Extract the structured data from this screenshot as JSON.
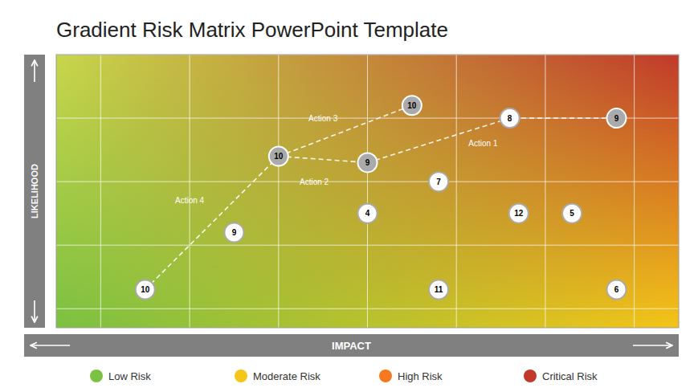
{
  "chart_data": {
    "type": "scatter",
    "title": "Gradient Risk Matrix PowerPoint Template",
    "x_label": "IMPACT",
    "y_label": "LIKELIHOOD",
    "xlim": [
      0.5,
      7.5
    ],
    "ylim": [
      0.7,
      5.0
    ],
    "xticks": [
      1,
      2,
      3,
      4,
      5,
      6,
      7
    ],
    "yticks": [
      1,
      2,
      3,
      4,
      5
    ],
    "grid": true,
    "tick_labels": false,
    "gradient": {
      "bottom_left": "#7bc142",
      "bottom_right": "#f5c518",
      "top_left": "#c8d64b",
      "top_right": "#c0392b"
    },
    "points": {
      "x": [
        1.5,
        2.5,
        3.0,
        4.0,
        4.0,
        4.8,
        4.8,
        5.7,
        6.3,
        5.6,
        4.5,
        6.8,
        6.8
      ],
      "values": [
        1.3,
        2.2,
        3.4,
        3.3,
        2.5,
        3.0,
        1.3,
        2.5,
        2.5,
        4.0,
        4.2,
        4.0,
        1.3
      ],
      "labels": [
        "10",
        "9",
        "10",
        "9",
        "4",
        "7",
        "11",
        "12",
        "5",
        "8",
        "10",
        "9",
        "6"
      ],
      "colors": [
        "#ffffff",
        "#ffffff",
        "#aaaaaa",
        "#aaaaaa",
        "#ffffff",
        "#ffffff",
        "#ffffff",
        "#ffffff",
        "#ffffff",
        "#ffffff",
        "#aaaaaa",
        "#aaaaaa",
        "#ffffff"
      ]
    },
    "annotations": [
      {
        "text": "Action 1",
        "x": 5.3,
        "y": 3.6,
        "line_x": [
          4.0,
          5.6,
          6.8
        ],
        "line_y": [
          3.3,
          4.0,
          4.0
        ],
        "line_style": "dashed",
        "color": "#ffffff"
      },
      {
        "text": "Action 2",
        "x": 3.4,
        "y": 3.0,
        "line_x": [
          3.0,
          4.0
        ],
        "line_y": [
          3.4,
          3.3
        ],
        "line_style": "dashed",
        "color": "#ffffff"
      },
      {
        "text": "Action 3",
        "x": 3.5,
        "y": 4.0,
        "line_x": [
          3.0,
          4.5
        ],
        "line_y": [
          3.4,
          4.2
        ],
        "line_style": "dashed",
        "color": "#ffffff"
      },
      {
        "text": "Action 4",
        "x": 2.0,
        "y": 2.7,
        "line_x": [
          1.5,
          3.0
        ],
        "line_y": [
          1.3,
          3.4
        ],
        "line_style": "dashed",
        "color": "#ffffff"
      }
    ],
    "legend_items": [
      {
        "name": "Low Risk",
        "color": "#7bc142"
      },
      {
        "name": "Moderate Risk",
        "color": "#f5c518"
      },
      {
        "name": "High Risk",
        "color": "#f47920"
      },
      {
        "name": "Critical Risk",
        "color": "#c0392b"
      }
    ]
  }
}
